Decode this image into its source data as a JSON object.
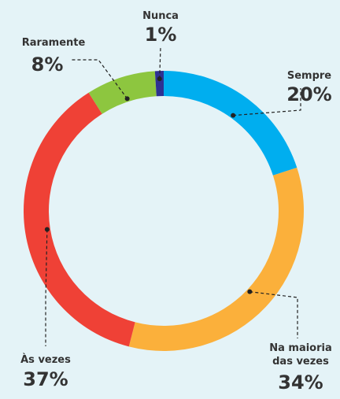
{
  "chart_data": {
    "type": "donut",
    "categories": [
      "Sempre",
      "Na maioria das vezes",
      "Às vezes",
      "Raramente",
      "Nunca"
    ],
    "values": [
      20,
      34,
      37,
      8,
      1
    ],
    "value_labels": [
      "20%",
      "34%",
      "37%",
      "8%",
      "1%"
    ],
    "colors": [
      "#00aeef",
      "#fbb03b",
      "#ef4136",
      "#8dc63f",
      "#2e3192"
    ]
  }
}
